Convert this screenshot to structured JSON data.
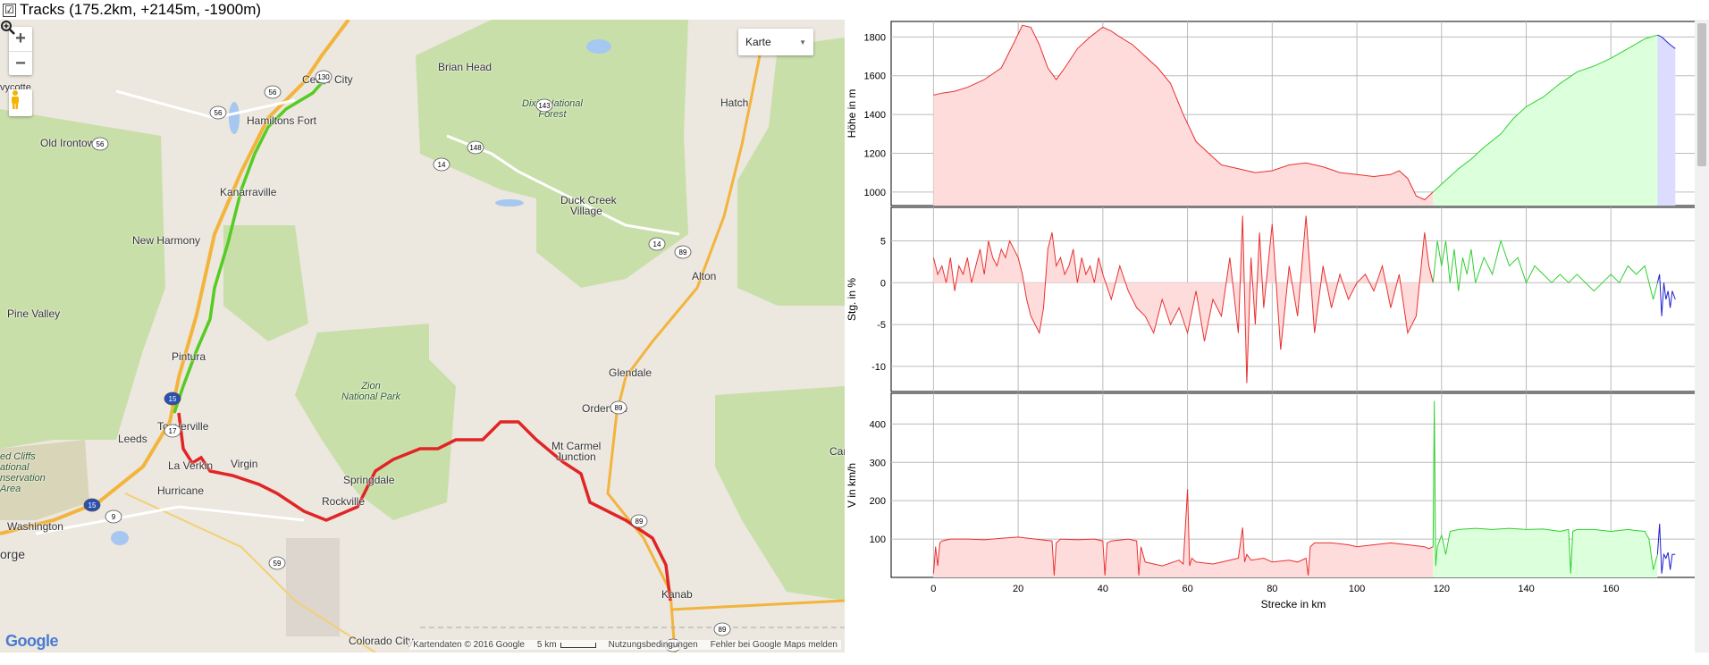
{
  "header": {
    "checkbox_glyph": "☑",
    "title": "Tracks (175.2km, +2145m, -1900m)"
  },
  "map": {
    "zoom_in": "+",
    "zoom_out": "−",
    "map_type": "Karte",
    "labels": {
      "cedar_city": "Cedar City",
      "hamiltons_fort": "Hamiltons Fort",
      "old_irontown": "Old Irontown",
      "kanarraville": "Kanarraville",
      "new_harmony": "New Harmony",
      "pine_valley": "Pine Valley",
      "pintura": "Pintura",
      "toquerville": "Toquerville",
      "leeds": "Leeds",
      "la_verkin": "La Verkin",
      "virgin": "Virgin",
      "hurricane": "Hurricane",
      "washington": "Washington",
      "springdale": "Springdale",
      "rockville": "Rockville",
      "brian_head": "Brian Head",
      "duck_creek": "Duck Creek",
      "village": "Village",
      "hatch": "Hatch",
      "alton": "Alton",
      "glendale": "Glendale",
      "orderville": "Orderville",
      "mt_carmel": "Mt Carmel",
      "junction": "Junction",
      "kanab": "Kanab",
      "colorado_city": "Colorado City",
      "orge": "orge",
      "can": "Can",
      "vycotte": "vycotte",
      "dixie": "Dixie National",
      "forest": "Forest",
      "zion": "Zion",
      "national_park": "National Park",
      "red_cliffs_1": "ed Cliffs",
      "red_cliffs_2": "ational",
      "red_cliffs_3": "nservation",
      "red_cliffs_4": "Area"
    },
    "shields": {
      "s130": "130",
      "s56a": "56",
      "s56b": "56",
      "s56c": "56",
      "s143": "143",
      "s148": "148",
      "s14a": "14",
      "s14b": "14",
      "s89a": "89",
      "s89b": "89",
      "s89c": "89",
      "s89d": "89",
      "s12": "12",
      "s89e": "89",
      "s9": "9",
      "s59": "59",
      "s15a": "15",
      "s15b": "15",
      "s17": "17",
      "s89A": "89A"
    },
    "google": "Google",
    "attribution": "Kartendaten © 2016 Google",
    "scale": "5 km",
    "terms": "Nutzungsbedingungen",
    "report": "Fehler bei Google Maps melden"
  },
  "chart_data": [
    {
      "type": "area",
      "ylabel": "Höhe in m",
      "xlim": [
        -10,
        180
      ],
      "ylim": [
        930,
        1880
      ],
      "yticks": [
        1000,
        1200,
        1400,
        1600,
        1800
      ],
      "series": [
        {
          "color": "#e83030",
          "fill": "#ffdcdc",
          "x": [
            0,
            2,
            5,
            8,
            12,
            16,
            19,
            21,
            23,
            25,
            27,
            29,
            31,
            34,
            37,
            40,
            42,
            44,
            47,
            50,
            53,
            56,
            59,
            62,
            65,
            68,
            72,
            76,
            80,
            84,
            88,
            92,
            96,
            100,
            104,
            108,
            110,
            112,
            114,
            116,
            117,
            118
          ],
          "y": [
            1500,
            1510,
            1520,
            1540,
            1580,
            1640,
            1770,
            1860,
            1850,
            1760,
            1640,
            1580,
            1640,
            1740,
            1800,
            1850,
            1830,
            1800,
            1760,
            1700,
            1640,
            1560,
            1400,
            1260,
            1200,
            1140,
            1120,
            1100,
            1110,
            1140,
            1150,
            1130,
            1100,
            1090,
            1080,
            1090,
            1110,
            1070,
            980,
            960,
            980,
            1000
          ]
        },
        {
          "color": "#30d030",
          "fill": "#dcffdc",
          "x": [
            118,
            121,
            124,
            127,
            130,
            134,
            137,
            140,
            144,
            148,
            152,
            156,
            160,
            164,
            168,
            171
          ],
          "y": [
            1000,
            1060,
            1120,
            1170,
            1230,
            1300,
            1380,
            1440,
            1490,
            1560,
            1620,
            1650,
            1690,
            1740,
            1790,
            1810
          ]
        },
        {
          "color": "#2020d0",
          "fill": "#dcdcff",
          "x": [
            171,
            172,
            173,
            174,
            175.2
          ],
          "y": [
            1810,
            1800,
            1780,
            1760,
            1740
          ]
        }
      ]
    },
    {
      "type": "line",
      "ylabel": "Stg. in %",
      "xlim": [
        -10,
        180
      ],
      "ylim": [
        -13,
        9
      ],
      "yticks": [
        -10,
        -5,
        0,
        5
      ],
      "series": [
        {
          "color": "#e83030",
          "fill": "#ffdcdc",
          "x": [
            0,
            1,
            2,
            3,
            4,
            5,
            6,
            7,
            8,
            9,
            10,
            11,
            12,
            13,
            14,
            15,
            16,
            17,
            18,
            19,
            20,
            21,
            22,
            23,
            24,
            25,
            26,
            27,
            28,
            29,
            30,
            31,
            32,
            33,
            34,
            35,
            36,
            37,
            38,
            39,
            40,
            42,
            44,
            46,
            48,
            50,
            52,
            54,
            56,
            58,
            60,
            62,
            64,
            66,
            68,
            70,
            72,
            73,
            74,
            75,
            76,
            77,
            78,
            80,
            82,
            84,
            86,
            88,
            90,
            92,
            94,
            96,
            98,
            100,
            102,
            104,
            106,
            108,
            110,
            112,
            114,
            116,
            117,
            118
          ],
          "y": [
            3,
            1,
            2,
            0,
            3,
            -1,
            2,
            1,
            3,
            0,
            2,
            4,
            1,
            5,
            3,
            2,
            4,
            3,
            5,
            4,
            3,
            1,
            -2,
            -4,
            -5,
            -6,
            -3,
            4,
            6,
            2,
            3,
            1,
            2,
            4,
            0,
            3,
            1,
            2,
            0,
            3,
            1,
            -2,
            2,
            -1,
            -3,
            -4,
            -6,
            -2,
            -5,
            -3,
            -6,
            -1,
            -7,
            -2,
            -4,
            3,
            -6,
            8,
            -12,
            3,
            -5,
            6,
            -3,
            7,
            -8,
            2,
            -4,
            8,
            -6,
            2,
            -3,
            1,
            -2,
            0,
            1,
            -1,
            2,
            -3,
            1,
            -6,
            -4,
            6,
            2,
            0
          ]
        },
        {
          "color": "#30d030",
          "fill": "none",
          "x": [
            118,
            119,
            120,
            121,
            122,
            123,
            124,
            125,
            126,
            127,
            128,
            130,
            132,
            134,
            136,
            138,
            140,
            142,
            144,
            146,
            148,
            150,
            152,
            154,
            156,
            158,
            160,
            162,
            164,
            166,
            168,
            170,
            171
          ],
          "y": [
            0,
            5,
            2,
            5,
            0,
            4,
            -1,
            3,
            1,
            4,
            0,
            3,
            1,
            5,
            2,
            3,
            0,
            2,
            1,
            0,
            1,
            0,
            1,
            0,
            -1,
            0,
            1,
            0,
            2,
            1,
            2,
            -2,
            0
          ]
        },
        {
          "color": "#2020d0",
          "fill": "none",
          "x": [
            171,
            171.5,
            172,
            172.5,
            173,
            173.5,
            174,
            174.5,
            175.2
          ],
          "y": [
            0,
            1,
            -4,
            0,
            -2,
            -1,
            -3,
            -1,
            -2
          ]
        }
      ]
    },
    {
      "type": "area",
      "ylabel": "V in km/h",
      "xlim": [
        -10,
        180
      ],
      "ylim": [
        0,
        480
      ],
      "yticks": [
        100,
        200,
        300,
        400
      ],
      "xticks": [
        0,
        20,
        40,
        60,
        80,
        100,
        120,
        140,
        160
      ],
      "xlabel": "Strecke in km",
      "series": [
        {
          "color": "#e83030",
          "fill": "#ffdcdc",
          "x": [
            0,
            0.5,
            1,
            1.5,
            2,
            4,
            8,
            12,
            16,
            20,
            24,
            28,
            28.5,
            29,
            30,
            34,
            38,
            40,
            40.5,
            41,
            42,
            46,
            48,
            48.5,
            49,
            50,
            54,
            58,
            59,
            60,
            60.5,
            61,
            62,
            66,
            70,
            72,
            73,
            73.5,
            74,
            75,
            78,
            80,
            84,
            86,
            88,
            88.5,
            89,
            90,
            94,
            98,
            100,
            104,
            108,
            112,
            116,
            117,
            118
          ],
          "y": [
            10,
            80,
            30,
            90,
            95,
            100,
            100,
            98,
            102,
            105,
            100,
            95,
            5,
            90,
            100,
            98,
            100,
            95,
            5,
            90,
            95,
            100,
            95,
            5,
            80,
            40,
            30,
            45,
            35,
            230,
            30,
            50,
            40,
            35,
            45,
            50,
            130,
            40,
            60,
            45,
            50,
            40,
            45,
            40,
            50,
            5,
            80,
            90,
            90,
            85,
            80,
            85,
            90,
            85,
            80,
            75,
            80
          ]
        },
        {
          "color": "#30d030",
          "fill": "#dcffdc",
          "x": [
            118,
            118.3,
            118.6,
            119,
            120,
            121,
            122,
            124,
            128,
            132,
            136,
            140,
            144,
            148,
            150,
            150.5,
            151,
            152,
            156,
            160,
            164,
            166,
            168,
            169,
            170,
            171
          ],
          "y": [
            80,
            460,
            30,
            80,
            110,
            60,
            120,
            125,
            128,
            125,
            128,
            125,
            126,
            120,
            125,
            10,
            120,
            125,
            125,
            120,
            125,
            122,
            120,
            100,
            20,
            60
          ]
        },
        {
          "color": "#2020d0",
          "fill": "none",
          "x": [
            171,
            171.5,
            172,
            172.5,
            173,
            173.5,
            174,
            174.5,
            175.2
          ],
          "y": [
            60,
            140,
            10,
            60,
            50,
            65,
            20,
            60,
            60
          ]
        }
      ]
    }
  ]
}
